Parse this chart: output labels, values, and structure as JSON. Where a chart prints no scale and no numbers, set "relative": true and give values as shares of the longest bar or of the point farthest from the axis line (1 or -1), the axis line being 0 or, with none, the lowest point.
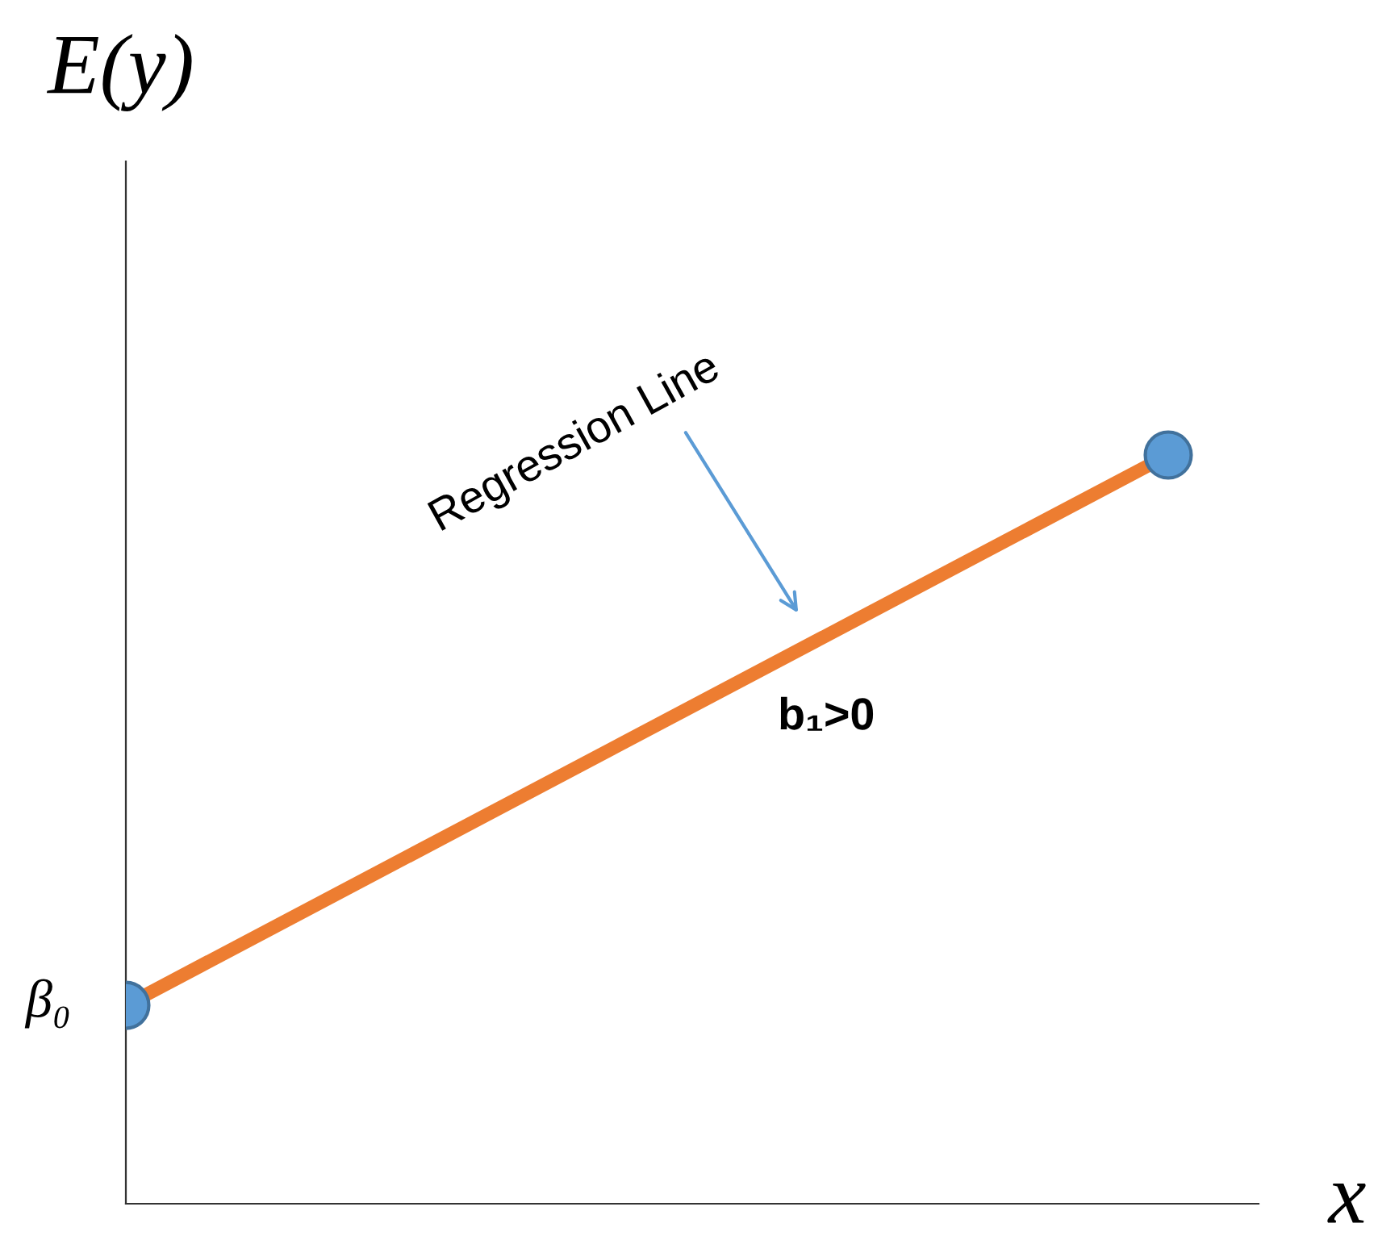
{
  "chart_data": {
    "type": "line",
    "relative": true,
    "ylabel": "E(y)",
    "xlabel": "x",
    "categories": [
      null,
      null
    ],
    "series": [
      {
        "color": "#ed7d31",
        "colors": [
          "#5b9bd5",
          "#5b9bd5"
        ],
        "values": [
          0.265,
          1
        ]
      }
    ],
    "marker": "circle",
    "annotations": [
      "Regression Line",
      "b₁>0",
      "β₀"
    ],
    "grid": false,
    "legend": false
  }
}
